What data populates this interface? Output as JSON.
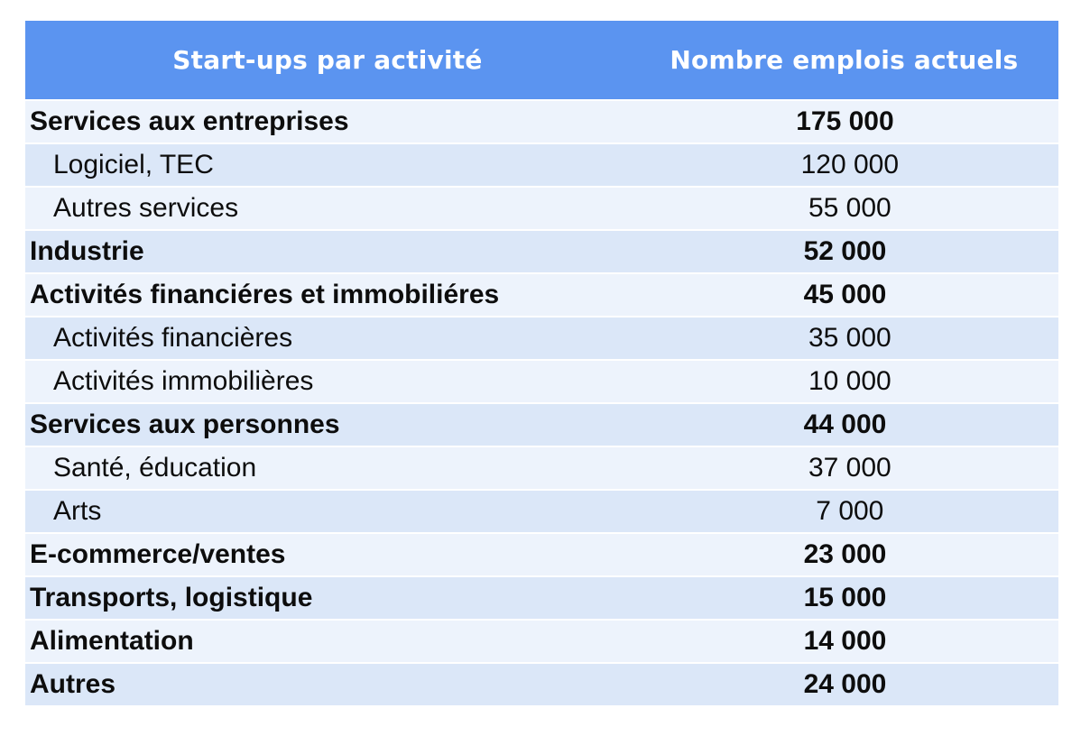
{
  "table": {
    "header": {
      "col1": "Start-ups par activité",
      "col2": "Nombre emplois actuels"
    },
    "rows": [
      {
        "label": "Services aux entreprises",
        "value": "175 000",
        "style": "category"
      },
      {
        "label": "Logiciel, TEC",
        "value": "120 000",
        "style": "sub"
      },
      {
        "label": "Autres services",
        "value": "55 000",
        "style": "sub"
      },
      {
        "label": "Industrie",
        "value": "52 000",
        "style": "category"
      },
      {
        "label": "Activités financiéres et immobiliéres",
        "value": "45 000",
        "style": "category"
      },
      {
        "label": "Activités financières",
        "value": "35 000",
        "style": "sub"
      },
      {
        "label": "Activités immobilières",
        "value": "10 000",
        "style": "sub"
      },
      {
        "label": "Services aux personnes",
        "value": "44 000",
        "style": "category"
      },
      {
        "label": "Santé, éducation",
        "value": "37 000",
        "style": "sub"
      },
      {
        "label": "Arts",
        "value": "7 000",
        "style": "sub"
      },
      {
        "label": "E-commerce/ventes",
        "value": "23 000",
        "style": "category"
      },
      {
        "label": "Transports, logistique",
        "value": "15 000",
        "style": "category"
      },
      {
        "label": "Alimentation",
        "value": "14 000",
        "style": "category"
      },
      {
        "label": "Autres",
        "value": "24 000",
        "style": "category"
      }
    ],
    "colors": {
      "header_bg": "#5B94F0",
      "header_text": "#FFFFFF",
      "row_light": "#EDF3FC",
      "row_dark": "#DBE7F8",
      "text": "#0D0D0D"
    }
  }
}
